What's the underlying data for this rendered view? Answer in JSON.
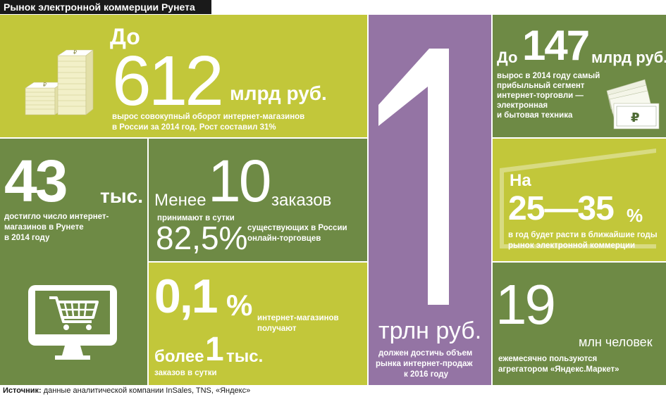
{
  "header": {
    "title": "Рынок электронной коммерции Рунета"
  },
  "colors": {
    "lime": "#c2c73a",
    "olive": "#6e8a45",
    "purple": "#9474a4",
    "header_bg": "#1a1a1a"
  },
  "panel_turnover": {
    "prefix": "До",
    "value": "612",
    "unit": "млрд руб.",
    "desc_line1": "вырос совокупный оборот интернет-магазинов",
    "desc_line2": "в России за 2014 год. Рост составил 31%",
    "icon": "ruble-stacks-icon"
  },
  "panel_trillion": {
    "value": "1",
    "unit": "трлн руб.",
    "desc_line1": "должен достичь объем",
    "desc_line2": "рынка интернет-продаж",
    "desc_line3": "к 2016 году"
  },
  "panel_electronics": {
    "prefix": "До",
    "value": "147",
    "unit": "млрд руб.",
    "desc_line1": "вырос в 2014 году самый",
    "desc_line2": "прибыльный сегмент",
    "desc_line3": "интернет-торговли —",
    "desc_line4": "электронная",
    "desc_line5": "и бытовая техника",
    "icon": "ruble-banknotes-icon"
  },
  "panel_shops": {
    "value": "43",
    "unit": "тыс.",
    "desc_line1": "достигло число интернет-",
    "desc_line2": "магазинов в Рунете",
    "desc_line3": "в 2014 году",
    "icon": "shopping-cart-monitor-icon"
  },
  "panel_orders": {
    "prefix": "Менее",
    "value": "10",
    "unit": "заказов",
    "desc_line1": "принимают в сутки",
    "percent": "82,5%",
    "desc_line2": "существующих в России",
    "desc_line3": "онлайн-торговцев"
  },
  "panel_growth": {
    "prefix": "На",
    "value": "25—35",
    "unit": "%",
    "desc_line1": "в год будет расти в ближайшие годы",
    "desc_line2": "рынок электронной коммерции"
  },
  "panel_top_shops": {
    "value": "0,1",
    "unit": "%",
    "desc_line1": "интернет-магазинов",
    "desc_line2": "получают",
    "prefix2": "более",
    "value2": "1",
    "unit2": "тыс.",
    "desc_line3": "заказов в сутки"
  },
  "panel_market": {
    "value": "19",
    "unit": "млн человек",
    "desc_line1": "ежемесячно пользуются",
    "desc_line2": "агрегатором «Яндекс.Маркет»"
  },
  "footer": {
    "label": "Источник:",
    "text": "данные аналитической компании InSales, TNS, «Яндекс»"
  }
}
